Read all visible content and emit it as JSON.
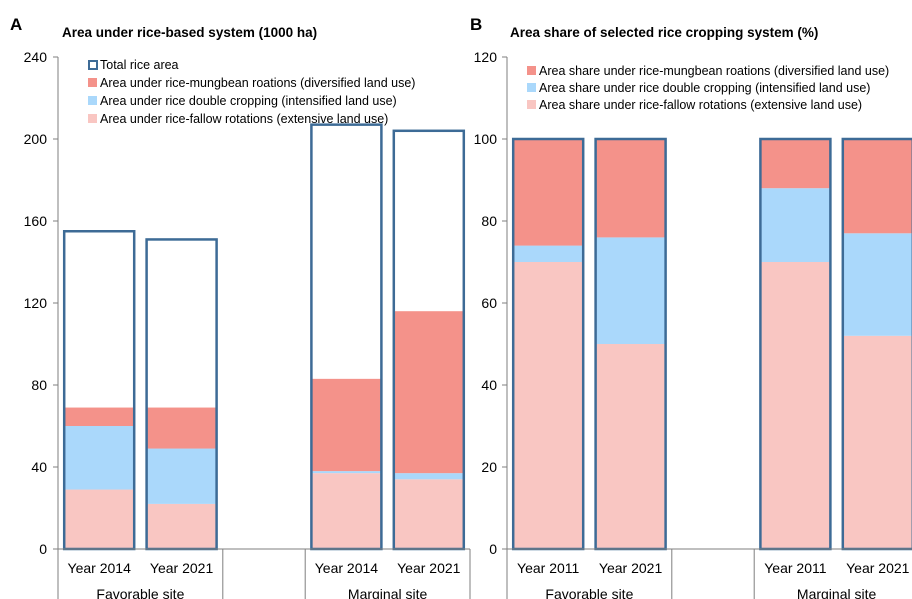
{
  "chart_data": [
    {
      "panel": "A",
      "type": "bar",
      "title": "Area under rice-based system (1000 ha)",
      "ylim": [
        0,
        240
      ],
      "yticks": [
        0,
        40,
        80,
        120,
        160,
        200,
        240
      ],
      "categories": [
        "Year 2014",
        "Year 2021",
        "",
        "Year 2014",
        "Year 2021"
      ],
      "groups": [
        "Favorable site",
        "Marginal site"
      ],
      "stacked_series": [
        {
          "name": "Area under rice-fallow rotations (extensive land use)",
          "color": "#f9c6c2",
          "values": [
            29,
            22,
            null,
            37,
            34
          ]
        },
        {
          "name": "Area under rice double cropping (intensified land use)",
          "color": "#aad8fb",
          "values": [
            31,
            27,
            null,
            1,
            3
          ]
        },
        {
          "name": "Area under rice-mungbean roations (diversified land use)",
          "color": "#f4928a",
          "values": [
            9,
            20,
            null,
            45,
            79
          ]
        }
      ],
      "outline_series": {
        "name": "Total rice area",
        "color": "#3d6b96",
        "values": [
          155,
          151,
          null,
          207,
          204
        ]
      },
      "legend_order": [
        "Total rice area",
        "Area under rice-mungbean roations (diversified land use)",
        "Area under rice double cropping (intensified land use)",
        "Area under rice-fallow rotations (extensive land use)"
      ]
    },
    {
      "panel": "B",
      "type": "bar",
      "title": "Area share of selected rice cropping system (%)",
      "ylim": [
        0,
        120
      ],
      "yticks": [
        0,
        20,
        40,
        60,
        80,
        100,
        120
      ],
      "categories": [
        "Year 2011",
        "Year 2021",
        "",
        "Year 2011",
        "Year 2021"
      ],
      "groups": [
        "Favorable site",
        "Marginal site"
      ],
      "stacked_series": [
        {
          "name": "Area share under rice-fallow rotations (extensive land use)",
          "color": "#f9c6c2",
          "values": [
            70,
            50,
            null,
            70,
            52
          ]
        },
        {
          "name": "Area share under rice double cropping (intensified land use)",
          "color": "#aad8fb",
          "values": [
            4,
            26,
            null,
            18,
            25
          ]
        },
        {
          "name": "Area share under rice-mungbean roations (diversified land use)",
          "color": "#f4928a",
          "values": [
            26,
            24,
            null,
            12,
            23
          ]
        }
      ],
      "outline_series": {
        "name": "",
        "color": "#3d6b96",
        "values": [
          100,
          100,
          null,
          100,
          100
        ]
      },
      "legend_order": [
        "Area share under rice-mungbean roations (diversified land use)",
        "Area share under rice double cropping (intensified land use)",
        "Area share under rice-fallow rotations (extensive land use)"
      ]
    }
  ]
}
